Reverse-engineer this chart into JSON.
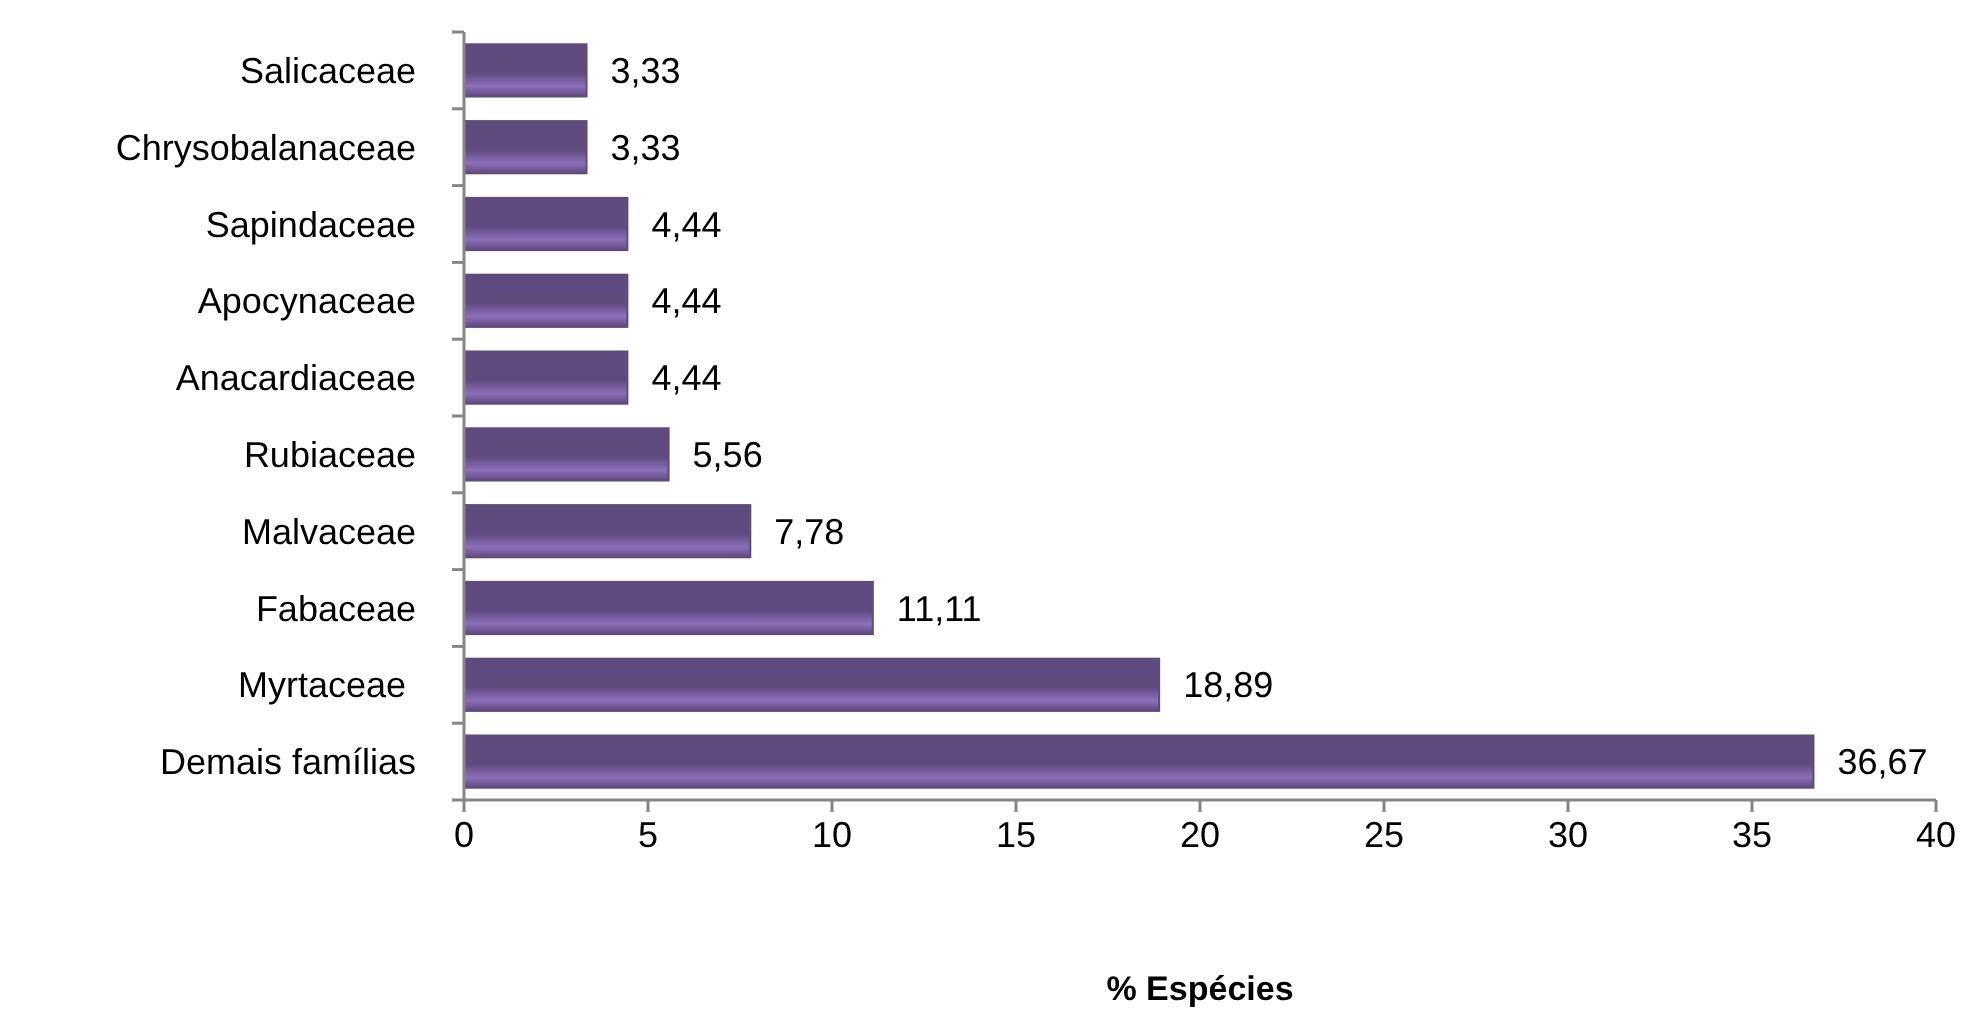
{
  "chart_data": {
    "type": "bar",
    "orientation": "horizontal",
    "xlabel": "% Espécies",
    "categories": [
      "Salicaceae",
      "Chrysobalanaceae",
      "Sapindaceae",
      "Apocynaceae",
      "Anacardiaceae",
      "Rubiaceae",
      "Malvaceae",
      "Fabaceae",
      "Myrtaceae ",
      "Demais famílias"
    ],
    "values": [
      3.33,
      3.33,
      4.44,
      4.44,
      4.44,
      5.56,
      7.78,
      11.11,
      18.89,
      36.67
    ],
    "value_labels": [
      "3,33",
      "3,33",
      "4,44",
      "4,44",
      "4,44",
      "5,56",
      "7,78",
      "11,11",
      "18,89",
      "36,67"
    ],
    "color": "#5f4b7e",
    "xlim": [
      0,
      40
    ],
    "xticks": [
      0,
      5,
      10,
      15,
      20,
      25,
      30,
      35,
      40
    ],
    "grid": false
  }
}
